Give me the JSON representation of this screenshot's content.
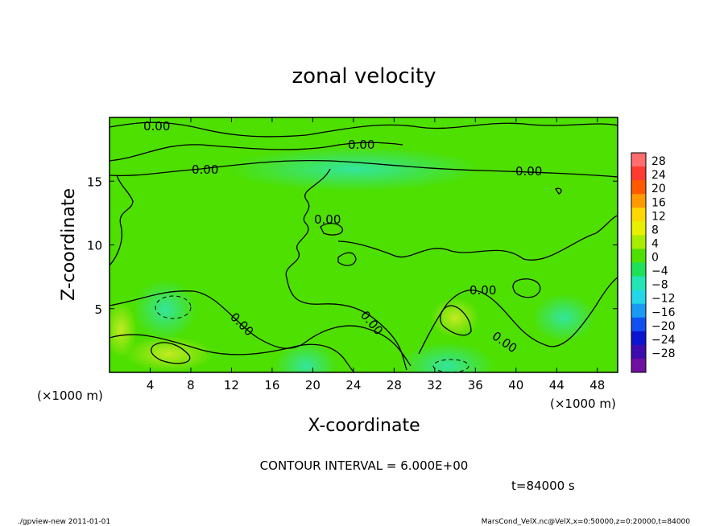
{
  "chart_data": {
    "type": "heatmap",
    "title": "zonal velocity",
    "xlabel": "X-coordinate",
    "ylabel": "Z-coordinate",
    "x_unit_left": "(×1000 m)",
    "x_unit_right": "(×1000 m)",
    "xlim": [
      0,
      50
    ],
    "ylim": [
      0,
      20
    ],
    "xticks": [
      4,
      8,
      12,
      16,
      20,
      24,
      28,
      32,
      36,
      40,
      44,
      48
    ],
    "yticks": [
      5,
      10,
      15
    ],
    "contour_label": "0.00",
    "contour_interval_text": "CONTOUR INTERVAL = 6.000E+00",
    "time_text": "t=84000 s",
    "footer_left": "./gpview-new   2011-01-01",
    "footer_right": "MarsCond_VelX.nc@VelX,x=0:50000,z=0:20000,t=84000",
    "colorbar": {
      "levels": [
        28,
        24,
        20,
        16,
        12,
        8,
        4,
        0,
        -4,
        -8,
        -12,
        -16,
        -20,
        -24,
        -28
      ],
      "colors": [
        "#ff6e6e",
        "#ff3a30",
        "#ff5a00",
        "#ff9a00",
        "#ffd800",
        "#e8f000",
        "#a8ec00",
        "#4ee000",
        "#1ee05a",
        "#22e6b4",
        "#22d8e8",
        "#1a9af0",
        "#1050f0",
        "#0c14d0",
        "#3c0cae",
        "#7010a0"
      ]
    }
  }
}
